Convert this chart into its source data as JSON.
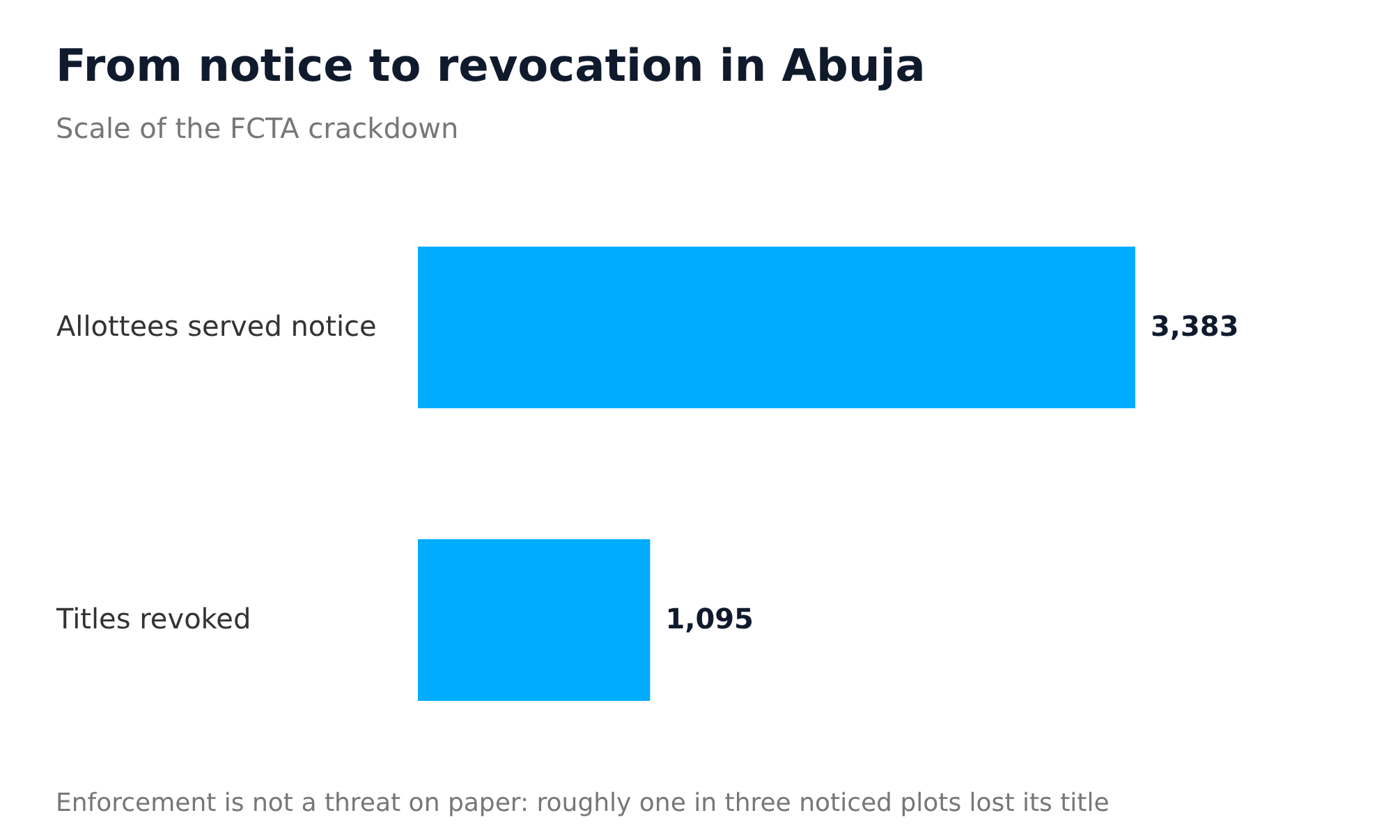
{
  "chart_data": {
    "type": "bar",
    "orientation": "horizontal",
    "title": "From notice to revocation in Abuja",
    "subtitle": "Scale of the FCTA crackdown",
    "categories": [
      "Allottees served notice",
      "Titles revoked"
    ],
    "values": [
      3383,
      1095
    ],
    "value_labels": [
      "3,383",
      "1,095"
    ],
    "color": "#00acff",
    "tick_labels": "y",
    "annotations": [
      "Enforcement is not a threat on paper: roughly one in three noticed plots lost its title"
    ]
  }
}
